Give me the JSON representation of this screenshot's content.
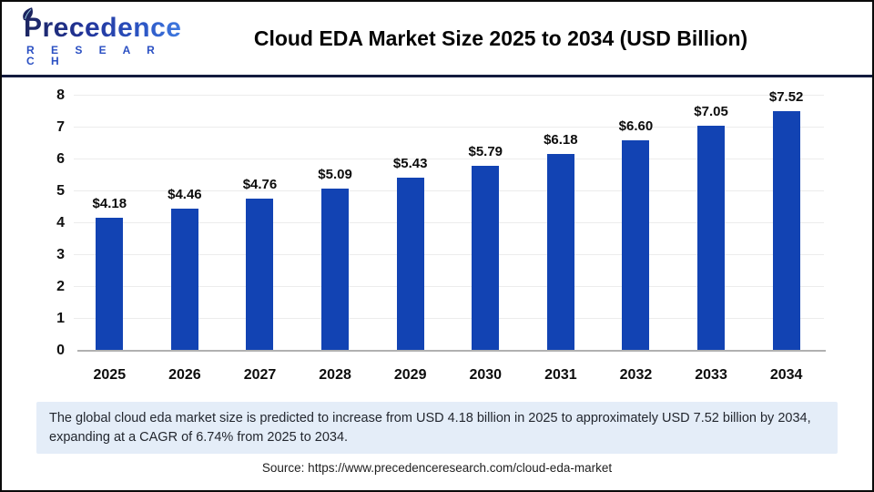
{
  "header": {
    "logo": {
      "name": "Precedence",
      "subname": "R E S E A R C H"
    },
    "title": "Cloud EDA Market Size 2025 to 2034 (USD Billion)"
  },
  "chart_data": {
    "type": "bar",
    "title": "Cloud EDA Market Size 2025 to 2034 (USD Billion)",
    "categories": [
      "2025",
      "2026",
      "2027",
      "2028",
      "2029",
      "2030",
      "2031",
      "2032",
      "2033",
      "2034"
    ],
    "values": [
      4.18,
      4.46,
      4.76,
      5.09,
      5.43,
      5.79,
      6.18,
      6.6,
      7.05,
      7.52
    ],
    "value_labels": [
      "$4.18",
      "$4.46",
      "$4.76",
      "$5.09",
      "$5.43",
      "$5.79",
      "$6.18",
      "$6.60",
      "$7.05",
      "$7.52"
    ],
    "xlabel": "",
    "ylabel": "",
    "ylim": [
      0,
      8
    ],
    "yticks": [
      0,
      1,
      2,
      3,
      4,
      5,
      6,
      7,
      8
    ],
    "grid": true,
    "legend": "none",
    "bar_color": "#1243b3"
  },
  "note": {
    "text": "The global cloud eda market size is predicted to increase from USD 4.18 billion in 2025 to approximately USD 7.52 billion by 2034, expanding at a CAGR of 6.74% from 2025 to 2034."
  },
  "source": {
    "text": "Source: https://www.precedenceresearch.com/cloud-eda-market"
  },
  "colors": {
    "bar": "#1243b3",
    "divider": "#131b3e",
    "note_bg": "#e4edf8",
    "gridline": "#ececec",
    "baseline": "#b1b1b1",
    "logo_dark": "#1c2560",
    "logo_light": "#3f7ae0"
  }
}
